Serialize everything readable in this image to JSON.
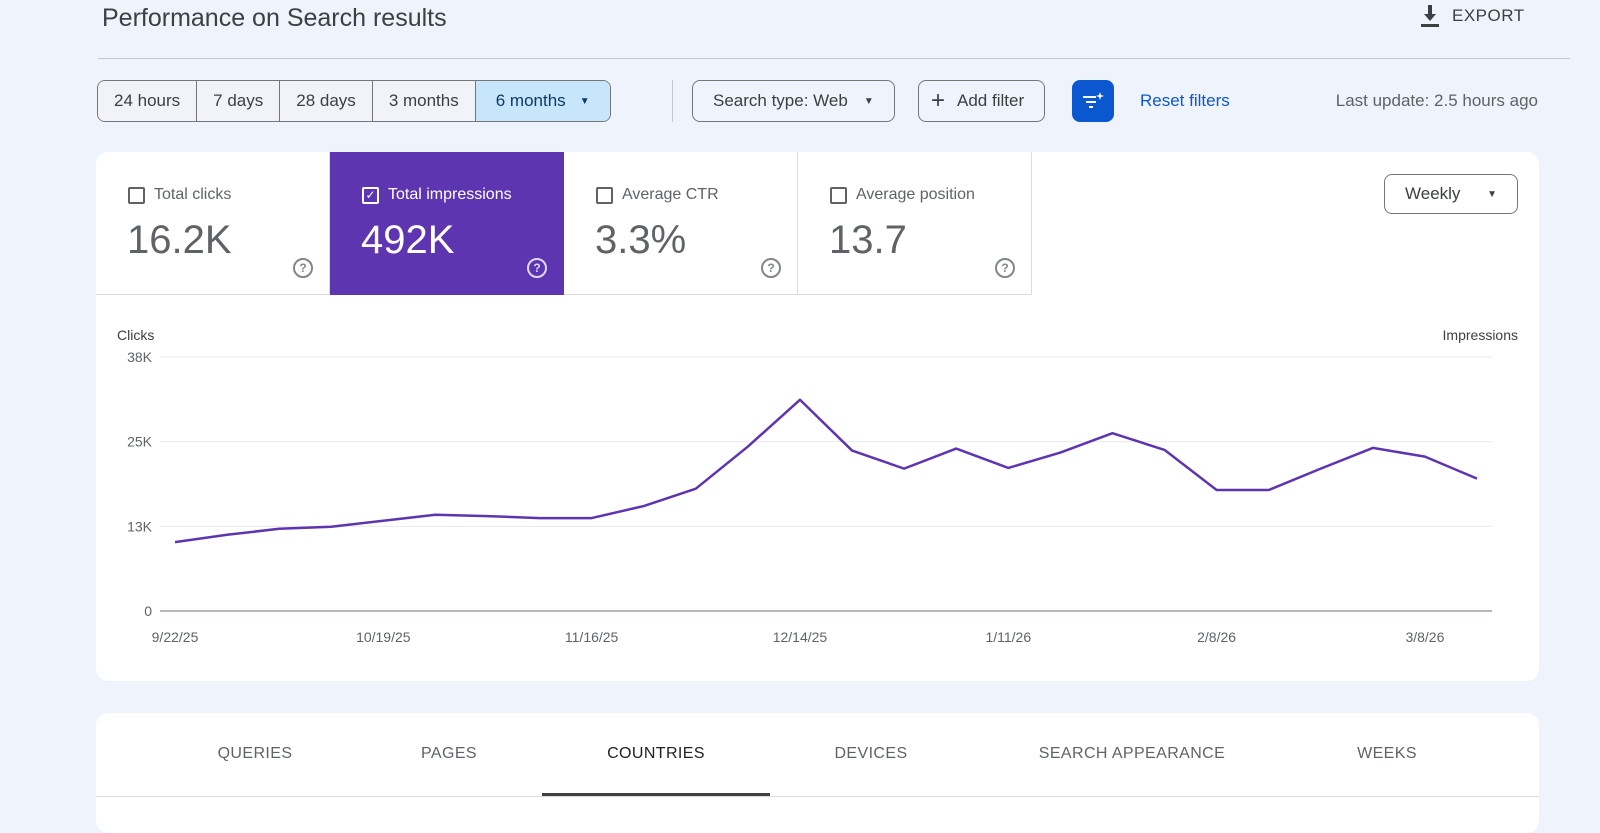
{
  "header": {
    "title": "Performance on Search results",
    "export_label": "EXPORT"
  },
  "filters": {
    "ranges": [
      "24 hours",
      "7 days",
      "28 days",
      "3 months",
      "6 months"
    ],
    "selected_range": "6 months",
    "search_type": "Search type: Web",
    "add_filter": "Add filter",
    "reset": "Reset filters",
    "last_update": "Last update: 2.5 hours ago"
  },
  "metrics": [
    {
      "label": "Total clicks",
      "value": "16.2K",
      "checked": false
    },
    {
      "label": "Total impressions",
      "value": "492K",
      "checked": true
    },
    {
      "label": "Average CTR",
      "value": "3.3%",
      "checked": false
    },
    {
      "label": "Average position",
      "value": "13.7",
      "checked": false
    }
  ],
  "granularity": "Weekly",
  "colors": {
    "accent": "#5e35b1",
    "primary": "#0b57d0"
  },
  "chart_data": {
    "type": "line",
    "ylabel_left": "Clicks",
    "ylabel_right": "Impressions",
    "yticks": [
      "0",
      "13K",
      "25K",
      "38K"
    ],
    "ylim": [
      0,
      38000
    ],
    "xtick_labels": [
      "9/22/25",
      "10/19/25",
      "11/16/25",
      "12/14/25",
      "1/11/26",
      "2/8/26",
      "3/8/26"
    ],
    "grid": true,
    "series": [
      {
        "color": "#5e35b1",
        "x": [
          "9/22/25",
          "9/29/25",
          "10/6/25",
          "10/13/25",
          "10/20/25",
          "10/27/25",
          "11/3/25",
          "11/10/25",
          "11/17/25",
          "11/24/25",
          "12/1/25",
          "12/8/25",
          "12/15/25",
          "12/22/25",
          "12/29/25",
          "1/5/26",
          "1/12/26",
          "1/19/26",
          "1/26/26",
          "2/2/26",
          "2/9/26",
          "2/16/26",
          "2/23/26",
          "3/2/26",
          "3/9/26",
          "3/16/26"
        ],
        "values": [
          10300,
          11400,
          12300,
          12600,
          13500,
          14400,
          14200,
          13900,
          13900,
          15700,
          18300,
          24600,
          31600,
          24000,
          21300,
          24300,
          21400,
          23700,
          26600,
          24100,
          18100,
          18100,
          21300,
          24400,
          23100,
          19800
        ]
      }
    ]
  },
  "tabs": [
    "QUERIES",
    "PAGES",
    "COUNTRIES",
    "DEVICES",
    "SEARCH APPEARANCE",
    "WEEKS"
  ],
  "active_tab": "COUNTRIES"
}
